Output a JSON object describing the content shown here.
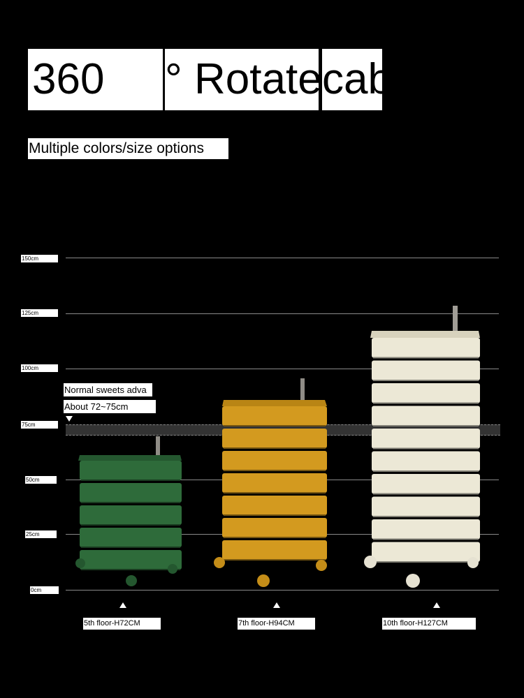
{
  "headline": {
    "part1": "360",
    "part2": "° Rotate",
    "part3": "cab"
  },
  "subtitle": "Multiple colors/size options",
  "scale": {
    "ticks": [
      "150cm",
      "125cm",
      "100cm",
      "75cm",
      "50cm",
      "25cm",
      "0cm"
    ]
  },
  "note": {
    "line1": "Normal sweets adva",
    "line2": "About 72~75cm"
  },
  "cabinets": [
    {
      "label": "5th floor-H72CM",
      "drawers": 5,
      "height_cm": 72,
      "color": "#2e6b3a"
    },
    {
      "label": "7th floor-H94CM",
      "drawers": 7,
      "height_cm": 94,
      "color": "#d39a1f"
    },
    {
      "label": "10th floor-H127CM",
      "drawers": 10,
      "height_cm": 127,
      "color": "#ece8d6"
    }
  ]
}
